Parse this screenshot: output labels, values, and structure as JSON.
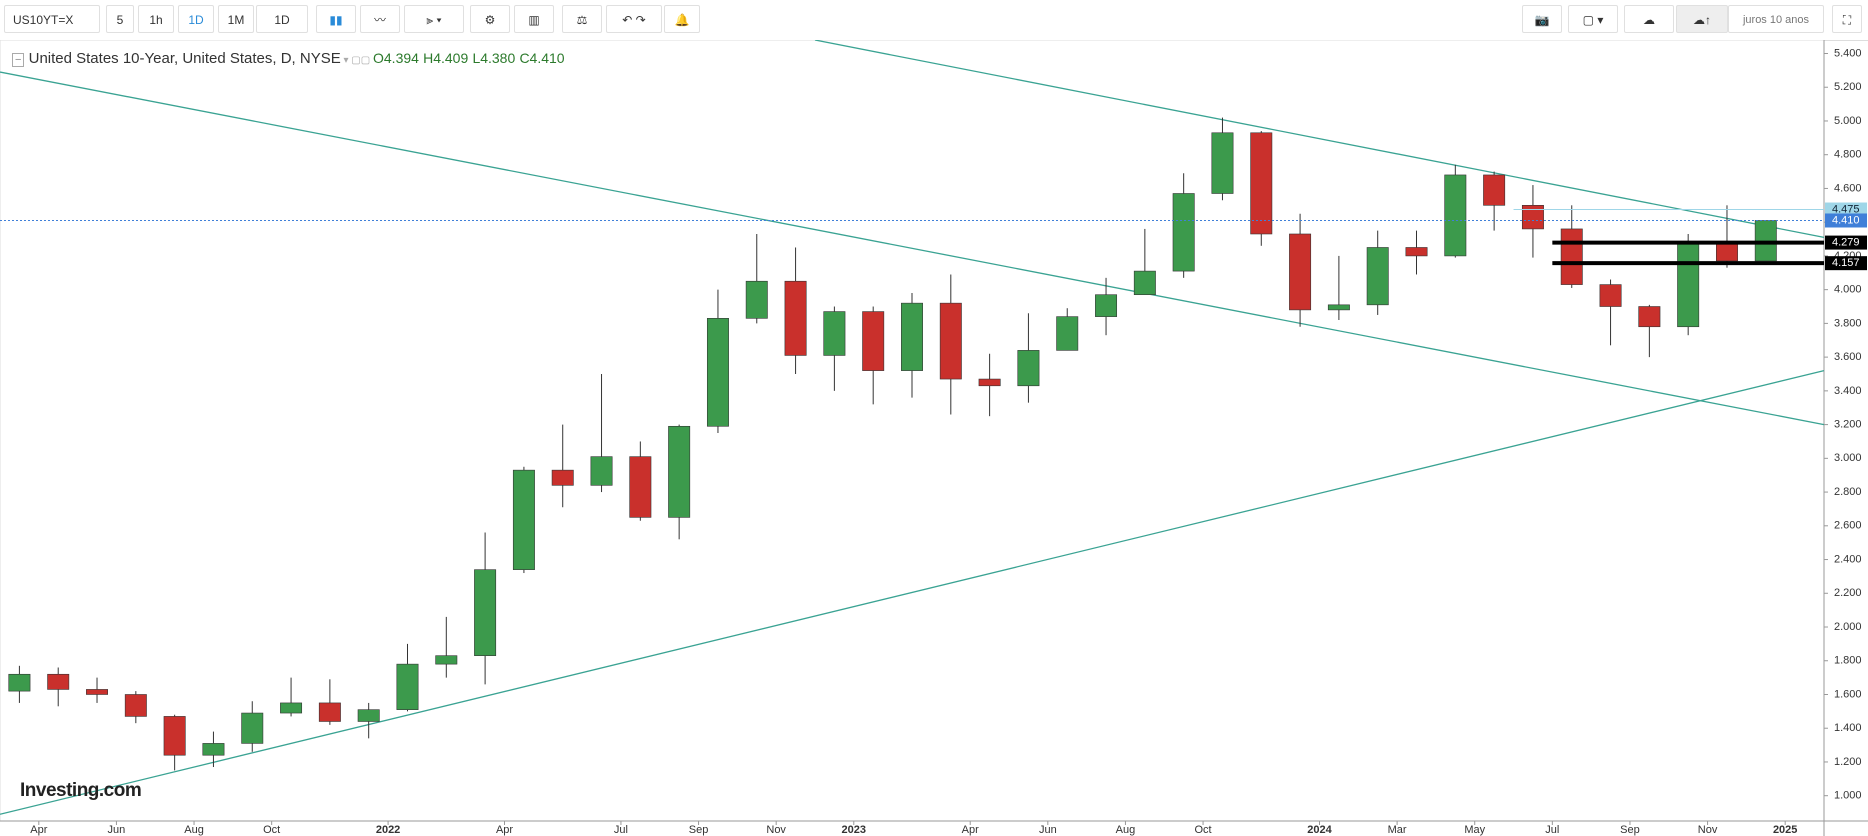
{
  "toolbar": {
    "symbol": "US10YT=X",
    "intervals": [
      "5",
      "1h",
      "1D",
      "1M",
      "1D"
    ],
    "layout_name": "juros 10 anos"
  },
  "header": {
    "title": "United States 10-Year, United States, D, NYSE",
    "ohlc": [
      "O4.394",
      "H4.409",
      "L4.380",
      "C4.410"
    ]
  },
  "watermark": "Investing.com",
  "chart_data": {
    "type": "candlestick",
    "up_color": "#3c9a4c",
    "down_color": "#c9302c",
    "x": [
      "2021-03",
      "2021-04",
      "2021-05",
      "2021-06",
      "2021-07",
      "2021-08",
      "2021-09",
      "2021-10",
      "2021-11",
      "2021-12",
      "2022-01",
      "2022-02",
      "2022-03",
      "2022-04",
      "2022-05",
      "2022-06",
      "2022-07",
      "2022-08",
      "2022-09",
      "2022-10",
      "2022-11",
      "2022-12",
      "2023-01",
      "2023-02",
      "2023-03",
      "2023-04",
      "2023-05",
      "2023-06",
      "2023-07",
      "2023-08",
      "2023-09",
      "2023-10",
      "2023-11",
      "2023-12",
      "2024-01",
      "2024-02",
      "2024-03",
      "2024-04",
      "2024-05",
      "2024-06",
      "2024-07",
      "2024-08",
      "2024-09",
      "2024-10",
      "2024-11",
      "2024-12"
    ],
    "open": [
      1.62,
      1.72,
      1.63,
      1.6,
      1.47,
      1.24,
      1.31,
      1.49,
      1.55,
      1.44,
      1.51,
      1.78,
      1.83,
      2.34,
      2.93,
      2.84,
      3.01,
      2.65,
      3.19,
      3.83,
      4.05,
      3.61,
      3.87,
      3.52,
      3.92,
      3.47,
      3.43,
      3.64,
      3.84,
      3.97,
      4.11,
      4.57,
      4.93,
      4.33,
      3.88,
      3.91,
      4.25,
      4.2,
      4.68,
      4.5,
      4.36,
      4.03,
      3.9,
      3.78,
      4.28,
      4.17
    ],
    "high": [
      1.77,
      1.76,
      1.7,
      1.62,
      1.48,
      1.38,
      1.56,
      1.7,
      1.69,
      1.55,
      1.9,
      2.06,
      2.56,
      2.95,
      3.2,
      3.5,
      3.1,
      3.2,
      4.0,
      4.33,
      4.25,
      3.9,
      3.9,
      3.98,
      4.09,
      3.62,
      3.86,
      3.89,
      4.07,
      4.36,
      4.69,
      5.02,
      4.94,
      4.45,
      4.2,
      4.35,
      4.35,
      4.74,
      4.7,
      4.62,
      4.5,
      4.06,
      3.91,
      4.33,
      4.5,
      4.41
    ],
    "low": [
      1.55,
      1.53,
      1.55,
      1.43,
      1.15,
      1.17,
      1.26,
      1.47,
      1.42,
      1.34,
      1.5,
      1.7,
      1.66,
      2.32,
      2.71,
      2.8,
      2.63,
      2.52,
      3.15,
      3.8,
      3.5,
      3.4,
      3.32,
      3.36,
      3.26,
      3.25,
      3.33,
      3.64,
      3.73,
      3.97,
      4.07,
      4.53,
      4.26,
      3.78,
      3.82,
      3.85,
      4.09,
      4.19,
      4.35,
      4.19,
      4.01,
      3.67,
      3.6,
      3.73,
      4.13,
      4.17
    ],
    "close": [
      1.72,
      1.63,
      1.6,
      1.47,
      1.24,
      1.31,
      1.49,
      1.55,
      1.44,
      1.51,
      1.78,
      1.83,
      2.34,
      2.93,
      2.84,
      3.01,
      2.65,
      3.19,
      3.83,
      4.05,
      3.61,
      3.87,
      3.52,
      3.92,
      3.47,
      3.43,
      3.64,
      3.84,
      3.97,
      4.11,
      4.57,
      4.93,
      4.33,
      3.88,
      3.91,
      4.25,
      4.2,
      4.68,
      4.5,
      4.36,
      4.03,
      3.9,
      3.78,
      4.28,
      4.17,
      4.41
    ],
    "xlim": [
      "2021-03",
      "2025-02"
    ],
    "xticks": [
      {
        "value": "2021-04",
        "label": "Apr"
      },
      {
        "value": "2021-06",
        "label": "Jun"
      },
      {
        "value": "2021-08",
        "label": "Aug"
      },
      {
        "value": "2021-10",
        "label": "Oct"
      },
      {
        "value": "2022-01",
        "label": "2022"
      },
      {
        "value": "2022-04",
        "label": "Apr"
      },
      {
        "value": "2022-07",
        "label": "Jul"
      },
      {
        "value": "2022-09",
        "label": "Sep"
      },
      {
        "value": "2022-11",
        "label": "Nov"
      },
      {
        "value": "2023-01",
        "label": "2023"
      },
      {
        "value": "2023-04",
        "label": "Apr"
      },
      {
        "value": "2023-06",
        "label": "Jun"
      },
      {
        "value": "2023-08",
        "label": "Aug"
      },
      {
        "value": "2023-10",
        "label": "Oct"
      },
      {
        "value": "2024-01",
        "label": "2024"
      },
      {
        "value": "2024-03",
        "label": "Mar"
      },
      {
        "value": "2024-05",
        "label": "May"
      },
      {
        "value": "2024-07",
        "label": "Jul"
      },
      {
        "value": "2024-09",
        "label": "Sep"
      },
      {
        "value": "2024-11",
        "label": "Nov"
      },
      {
        "value": "2025-01",
        "label": "2025"
      }
    ],
    "ylim": [
      0.85,
      5.48
    ],
    "yticks": [
      {
        "value": 1,
        "label": "1.000"
      },
      {
        "value": 1.2,
        "label": "1.200"
      },
      {
        "value": 1.4,
        "label": "1.400"
      },
      {
        "value": 1.6,
        "label": "1.600"
      },
      {
        "value": 1.8,
        "label": "1.800"
      },
      {
        "value": 2,
        "label": "2.000"
      },
      {
        "value": 2.2,
        "label": "2.200"
      },
      {
        "value": 2.4,
        "label": "2.400"
      },
      {
        "value": 2.6,
        "label": "2.600"
      },
      {
        "value": 2.8,
        "label": "2.800"
      },
      {
        "value": 3,
        "label": "3.000"
      },
      {
        "value": 3.2,
        "label": "3.200"
      },
      {
        "value": 3.4,
        "label": "3.400"
      },
      {
        "value": 3.6,
        "label": "3.600"
      },
      {
        "value": 3.8,
        "label": "3.800"
      },
      {
        "value": 4,
        "label": "4.000"
      },
      {
        "value": 4.2,
        "label": "4.200"
      },
      {
        "value": 4.4,
        "label": "4.400"
      },
      {
        "value": 4.6,
        "label": "4.600"
      },
      {
        "value": 4.8,
        "label": "4.800"
      },
      {
        "value": 5,
        "label": "5.000"
      },
      {
        "value": 5.2,
        "label": "5.200"
      },
      {
        "value": 5.4,
        "label": "5.400"
      }
    ],
    "price_lines": [
      {
        "value": 4.475,
        "label": "4.475",
        "from": "2024-06",
        "color": "#9fd6e8"
      },
      {
        "value": 4.41,
        "label": "4.410",
        "from": "2021-03",
        "color": "#3f7fd8"
      },
      {
        "value": 4.279,
        "label": "4.279",
        "from": "2024-07",
        "color": "#000000"
      },
      {
        "value": 4.157,
        "label": "4.157",
        "from": "2024-07",
        "color": "#000000"
      }
    ],
    "trendlines": [
      {
        "x": [
          "2021-03",
          "2025-02"
        ],
        "y": [
          5.29,
          3.2
        ]
      },
      {
        "x": [
          "2022-12",
          "2025-02"
        ],
        "y": [
          5.48,
          4.31
        ]
      },
      {
        "x": [
          "2021-03",
          "2025-02"
        ],
        "y": [
          0.89,
          3.52
        ]
      }
    ],
    "trend_color": "#3aa393"
  }
}
